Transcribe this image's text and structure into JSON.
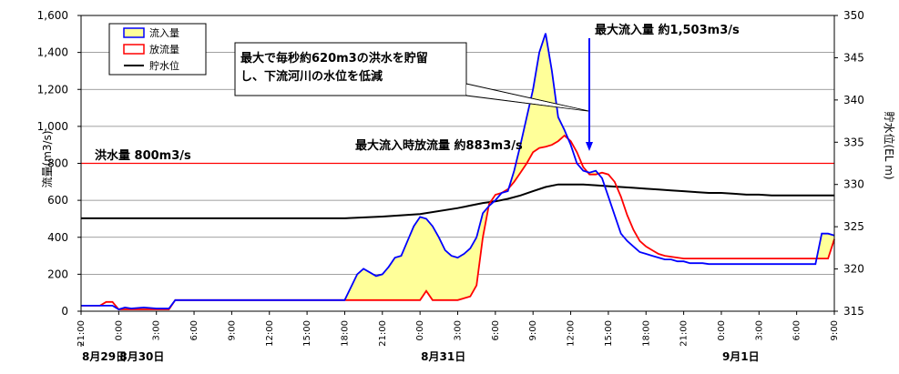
{
  "chart_data": {
    "type": "line",
    "ylabel_left": "流量(m3/s)",
    "ylabel_right": "貯水位(EL m)",
    "ylim_left": [
      0,
      1600
    ],
    "yticks_left": [
      "0",
      "200",
      "400",
      "600",
      "800",
      "1,000",
      "1,200",
      "1,400",
      "1,600"
    ],
    "ylim_right": [
      315,
      350
    ],
    "yticks_right": [
      "315",
      "320",
      "325",
      "330",
      "335",
      "340",
      "345",
      "350"
    ],
    "x_range_hours": [
      0,
      60
    ],
    "xtick_labels": [
      "21:00",
      "0:00",
      "3:00",
      "6:00",
      "9:00",
      "12:00",
      "15:00",
      "18:00",
      "21:00",
      "0:00",
      "3:00",
      "6:00",
      "9:00",
      "12:00",
      "15:00",
      "18:00",
      "21:00",
      "0:00",
      "3:00",
      "6:00",
      "9:00"
    ],
    "date_labels": [
      {
        "text": "8月29日",
        "hour": 0
      },
      {
        "text": "8月30日",
        "hour": 3
      },
      {
        "text": "8月31日",
        "hour": 27
      },
      {
        "text": "9月1日",
        "hour": 51
      }
    ],
    "grid": true,
    "legend_position": "top-left",
    "legend": [
      {
        "label": "流入量",
        "color": "#0000ff",
        "fill": "#ffff99"
      },
      {
        "label": "放流量",
        "color": "#ff0000"
      },
      {
        "label": "貯水位",
        "color": "#000000"
      }
    ],
    "threshold": {
      "label": "洪水量  800m3/s",
      "value": 800,
      "color": "#ff0000"
    },
    "annotations": {
      "max_inflow": "最大流入量  約1,503m3/s",
      "max_outflow": "最大流入時放流量  約883m3/s",
      "storage_line1": "最大で毎秒約620m3の洪水を貯留",
      "storage_line2": "し、下流河川の水位を低減"
    },
    "series": [
      {
        "name": "流入量",
        "axis": "left",
        "color": "#0000ff",
        "x": [
          0,
          1.5,
          2,
          2.5,
          3,
          3.5,
          4,
          5,
          6,
          6.5,
          7,
          7.5,
          8,
          9,
          12,
          15,
          18,
          21,
          21.5,
          22,
          22.5,
          23,
          23.5,
          24,
          24.5,
          25,
          25.5,
          26,
          26.5,
          27,
          27.5,
          28,
          28.5,
          29,
          29.5,
          30,
          30.5,
          31,
          31.5,
          32,
          32.5,
          33,
          33.5,
          34,
          34.5,
          35,
          35.5,
          36,
          36.5,
          37,
          37.5,
          38,
          38.5,
          39,
          39.5,
          40,
          40.5,
          41,
          41.5,
          42,
          42.5,
          43,
          43.5,
          44,
          44.5,
          45,
          45.5,
          46,
          46.5,
          47,
          47.5,
          48,
          48.5,
          49,
          49.5,
          50,
          50.5,
          51,
          51.5,
          52,
          52.5,
          53,
          53.5,
          54,
          54.5,
          55,
          55.5,
          56,
          56.5,
          57,
          57.5,
          58,
          58.5,
          59,
          59.5,
          60
        ],
        "values": [
          30,
          30,
          30,
          30,
          10,
          20,
          15,
          20,
          15,
          15,
          15,
          60,
          60,
          60,
          60,
          60,
          60,
          60,
          130,
          200,
          230,
          210,
          190,
          200,
          240,
          290,
          300,
          380,
          460,
          510,
          500,
          460,
          400,
          330,
          300,
          290,
          310,
          340,
          400,
          530,
          570,
          600,
          640,
          650,
          760,
          900,
          1050,
          1200,
          1400,
          1503,
          1300,
          1050,
          980,
          900,
          800,
          760,
          750,
          760,
          720,
          620,
          520,
          420,
          380,
          350,
          320,
          310,
          300,
          290,
          280,
          280,
          270,
          270,
          260,
          260,
          260,
          255,
          255,
          255,
          255,
          255,
          255,
          255,
          255,
          255,
          255,
          255,
          255,
          255,
          255,
          255,
          255,
          255,
          255,
          420,
          420,
          410
        ]
      },
      {
        "name": "放流量",
        "axis": "left",
        "color": "#ff0000",
        "x": [
          0,
          1.5,
          2,
          2.5,
          3,
          3.5,
          4,
          5,
          6,
          6.5,
          7,
          7.5,
          8,
          9,
          12,
          15,
          18,
          21,
          24,
          27,
          27.5,
          28,
          28.5,
          29,
          30,
          31,
          31.5,
          32,
          32.5,
          33,
          33.5,
          34,
          34.5,
          35,
          35.5,
          36,
          36.5,
          37,
          37.5,
          38,
          38.5,
          39,
          39.5,
          40,
          40.5,
          41,
          41.5,
          42,
          42.5,
          43,
          43.5,
          44,
          44.5,
          45,
          45.5,
          46,
          46.5,
          47,
          47.5,
          48,
          48.5,
          49,
          49.5,
          50,
          50.5,
          51,
          51.5,
          52,
          52.5,
          53,
          53.5,
          54,
          54.5,
          55,
          55.5,
          56,
          56.5,
          57,
          57.5,
          58,
          58.5,
          59,
          59.5,
          60
        ],
        "values": [
          30,
          30,
          50,
          50,
          10,
          10,
          10,
          10,
          10,
          10,
          10,
          60,
          60,
          60,
          60,
          60,
          60,
          60,
          60,
          60,
          110,
          60,
          60,
          60,
          60,
          80,
          140,
          400,
          580,
          630,
          640,
          660,
          700,
          750,
          800,
          860,
          883,
          890,
          900,
          920,
          950,
          920,
          860,
          780,
          740,
          740,
          750,
          740,
          700,
          620,
          520,
          440,
          380,
          350,
          330,
          310,
          300,
          295,
          290,
          285,
          285,
          285,
          285,
          285,
          285,
          285,
          285,
          285,
          285,
          285,
          285,
          285,
          285,
          285,
          285,
          285,
          285,
          285,
          285,
          285,
          285,
          285,
          285,
          390
        ]
      },
      {
        "name": "貯水位",
        "axis": "right",
        "color": "#000000",
        "x": [
          0,
          3,
          6,
          9,
          12,
          15,
          18,
          21,
          24,
          27,
          30,
          31,
          32,
          33,
          34,
          35,
          36,
          37,
          38,
          39,
          40,
          41,
          42,
          43,
          44,
          45,
          46,
          47,
          48,
          49,
          50,
          51,
          52,
          53,
          54,
          55,
          56,
          57,
          58,
          59,
          60
        ],
        "values": [
          326,
          326,
          326,
          326,
          326,
          326,
          326,
          326,
          326.2,
          326.5,
          327.2,
          327.5,
          327.8,
          328,
          328.3,
          328.7,
          329.2,
          329.7,
          330,
          330,
          330,
          329.9,
          329.8,
          329.7,
          329.6,
          329.5,
          329.4,
          329.3,
          329.2,
          329.1,
          329.0,
          329.0,
          328.9,
          328.8,
          328.8,
          328.7,
          328.7,
          328.7,
          328.7,
          328.7,
          328.7
        ]
      }
    ]
  }
}
